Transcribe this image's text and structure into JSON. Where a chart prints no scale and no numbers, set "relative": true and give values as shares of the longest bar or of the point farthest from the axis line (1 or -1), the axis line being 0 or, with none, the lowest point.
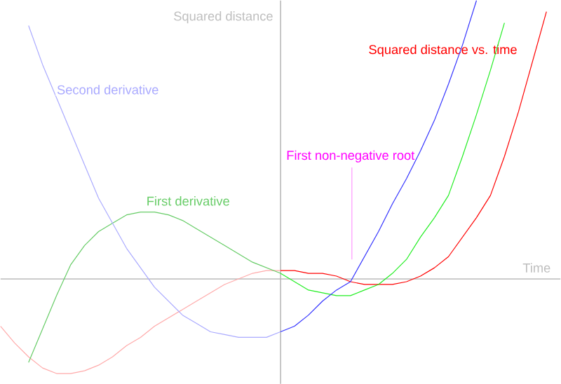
{
  "chart_data": {
    "type": "line",
    "relative": true,
    "xlabel": "Time",
    "ylabel": "Squared distance",
    "annotations": [
      "First non-negative root"
    ],
    "categories": [
      null,
      null,
      null,
      null,
      null,
      null,
      null,
      null,
      null,
      null,
      null,
      null,
      null,
      null,
      null,
      null,
      null,
      null,
      null,
      null,
      null,
      null,
      null,
      null,
      null,
      null,
      null,
      null,
      null,
      null,
      null,
      null,
      null,
      null,
      null,
      null,
      null,
      null,
      null,
      null,
      null
    ],
    "series": [
      {
        "color": "#ffaaaa",
        "values": [
          -0.17,
          -0.23,
          -0.28,
          -0.32,
          -0.34,
          -0.34,
          -0.33,
          -0.31,
          -0.28,
          -0.24,
          -0.21,
          -0.17,
          -0.14,
          -0.11,
          -0.08,
          -0.05,
          -0.02,
          0,
          0.02,
          0.03,
          0.03,
          null,
          null,
          null,
          null,
          null,
          null,
          null,
          null,
          null,
          null,
          null,
          null,
          null,
          null,
          null,
          null,
          null,
          null,
          null,
          null
        ]
      },
      {
        "name": "Squared distance vs. time",
        "color": "#ff0000",
        "values": [
          null,
          null,
          null,
          null,
          null,
          null,
          null,
          null,
          null,
          null,
          null,
          null,
          null,
          null,
          null,
          null,
          null,
          null,
          null,
          null,
          0.03,
          0.03,
          0.02,
          0.02,
          0.01,
          -0.01,
          -0.02,
          -0.02,
          -0.02,
          -0.01,
          0.01,
          0.04,
          0.08,
          0.15,
          0.22,
          0.3,
          0.44,
          0.6,
          0.78,
          0.96,
          null
        ]
      },
      {
        "name": "First derivative",
        "color": "#66cc66",
        "values": [
          null,
          null,
          -0.3,
          -0.18,
          -0.06,
          0.05,
          0.12,
          0.17,
          0.2,
          0.23,
          0.24,
          0.24,
          0.23,
          0.21,
          0.18,
          0.15,
          0.12,
          0.09,
          0.06,
          0.04,
          0.02,
          null,
          null,
          null,
          null,
          null,
          null,
          null,
          null,
          null,
          null,
          null,
          null,
          null,
          null,
          null,
          null,
          null,
          null,
          null,
          null
        ]
      },
      {
        "color": "#22ee22",
        "values": [
          null,
          null,
          null,
          null,
          null,
          null,
          null,
          null,
          null,
          null,
          null,
          null,
          null,
          null,
          null,
          null,
          null,
          null,
          null,
          null,
          0.02,
          -0.01,
          -0.04,
          -0.05,
          -0.06,
          -0.06,
          -0.04,
          -0.02,
          0.02,
          0.07,
          0.15,
          0.22,
          0.3,
          0.44,
          0.59,
          0.75,
          0.92,
          null,
          null,
          null,
          null
        ]
      },
      {
        "name": "Second derivative",
        "color": "#aaaaff",
        "values": [
          null,
          null,
          0.91,
          0.77,
          0.65,
          0.53,
          0.41,
          0.29,
          0.2,
          0.11,
          0.04,
          -0.03,
          -0.08,
          -0.13,
          -0.16,
          -0.19,
          -0.2,
          -0.21,
          -0.21,
          -0.21,
          -0.19,
          null,
          null,
          null,
          null,
          null,
          null,
          null,
          null,
          null,
          null,
          null,
          null,
          null,
          null,
          null,
          null,
          null,
          null,
          null,
          null
        ]
      },
      {
        "color": "#3333ff",
        "values": [
          null,
          null,
          null,
          null,
          null,
          null,
          null,
          null,
          null,
          null,
          null,
          null,
          null,
          null,
          null,
          null,
          null,
          null,
          null,
          null,
          -0.19,
          -0.17,
          -0.13,
          -0.08,
          -0.04,
          -0.01,
          0.08,
          0.17,
          0.27,
          0.36,
          0.46,
          0.57,
          0.7,
          0.84,
          1,
          null,
          null,
          null,
          null,
          null,
          null
        ]
      }
    ]
  }
}
